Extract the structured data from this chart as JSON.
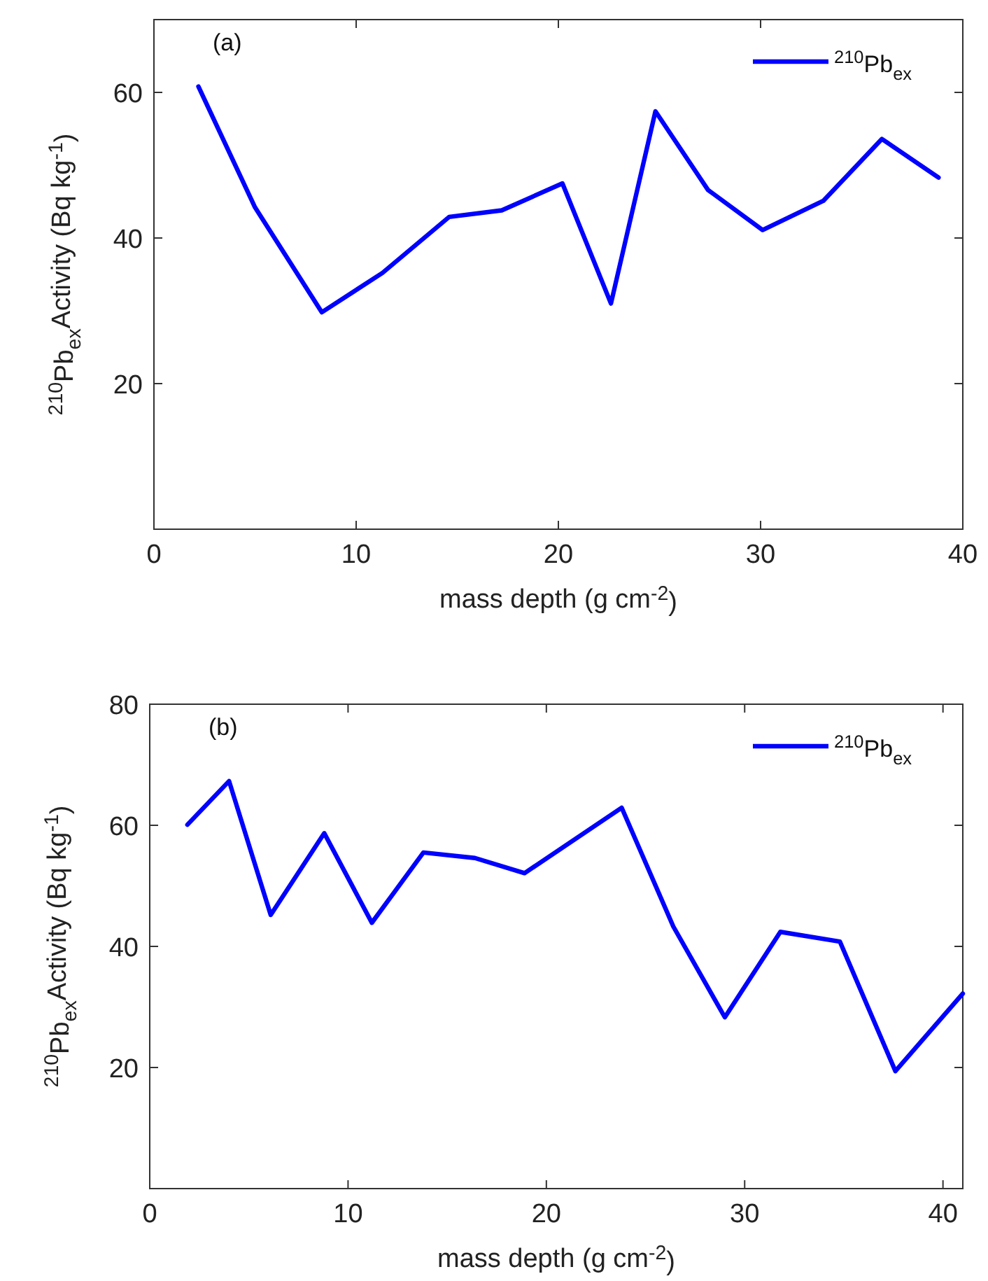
{
  "chart_data": [
    {
      "type": "line",
      "title": "(a)",
      "xlabel": "mass depth (g cm$^{-2}$)",
      "ylabel": "$^{210}$Pb$_{ex}$Activity (Bq kg$^{-1}$)",
      "xlim": [
        0,
        40
      ],
      "xticks": [
        0,
        10,
        20,
        30,
        40
      ],
      "ylim": [
        0,
        70
      ],
      "yticks": [
        20,
        40,
        60
      ],
      "legend": "top right",
      "grid": false,
      "series": [
        {
          "name": "$^{210}$Pb$_{ex}$",
          "color": "#0000ff",
          "x": [
            2.2,
            5.0,
            8.3,
            11.3,
            14.6,
            17.2,
            20.2,
            22.6,
            24.8,
            27.4,
            30.1,
            33.1,
            36.0,
            38.8
          ],
          "values": [
            60.8,
            44.2,
            29.8,
            35.2,
            42.9,
            43.8,
            47.5,
            31.0,
            57.4,
            46.6,
            41.1,
            45.1,
            53.6,
            48.3
          ]
        }
      ]
    },
    {
      "type": "line",
      "title": "(b)",
      "xlabel": "mass depth (g cm$^{-2}$)",
      "ylabel": "$^{210}$Pb$_{ex}$Activity (Bq kg$^{-1}$)",
      "xlim": [
        0,
        41
      ],
      "xticks": [
        0,
        10,
        20,
        30,
        40
      ],
      "ylim": [
        0,
        80
      ],
      "yticks": [
        20,
        40,
        60,
        80
      ],
      "legend": "top right",
      "grid": false,
      "series": [
        {
          "name": "$^{210}$Pb$_{ex}$",
          "color": "#0000ff",
          "x": [
            1.9,
            4.0,
            6.1,
            8.8,
            11.2,
            13.8,
            16.4,
            18.9,
            23.8,
            26.4,
            29.0,
            31.8,
            34.8,
            37.6,
            41.0
          ],
          "values": [
            60.1,
            67.3,
            45.2,
            58.7,
            43.9,
            55.5,
            54.6,
            52.1,
            62.9,
            43.3,
            28.3,
            42.4,
            40.8,
            19.4,
            32.2
          ]
        }
      ]
    }
  ]
}
